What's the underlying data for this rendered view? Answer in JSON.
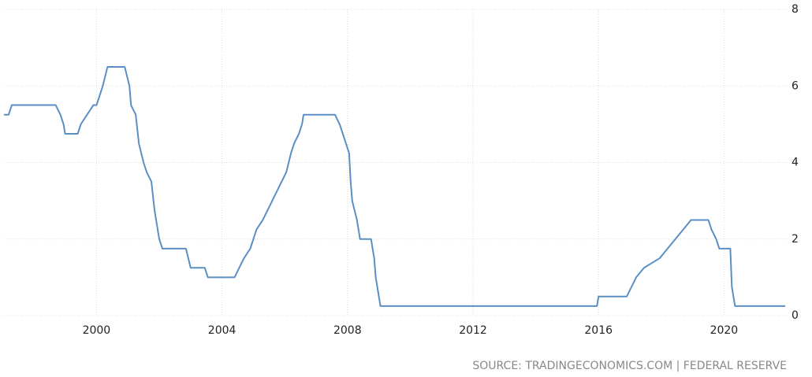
{
  "chart_data": {
    "type": "line",
    "x": [
      1997.05,
      1997.2,
      1997.3,
      1998.7,
      1998.85,
      1998.95,
      1999.0,
      1999.4,
      1999.5,
      1999.7,
      1999.9,
      2000.0,
      2000.1,
      2000.2,
      2000.35,
      2000.9,
      2001.05,
      2001.1,
      2001.25,
      2001.35,
      2001.5,
      2001.6,
      2001.75,
      2001.85,
      2002.0,
      2002.1,
      2002.85,
      2003.0,
      2003.45,
      2003.55,
      2004.4,
      2004.55,
      2004.7,
      2004.9,
      2005.1,
      2005.3,
      2005.45,
      2005.6,
      2005.75,
      2005.9,
      2006.05,
      2006.2,
      2006.3,
      2006.45,
      2006.55,
      2006.6,
      2007.6,
      2007.75,
      2007.85,
      2007.95,
      2008.05,
      2008.1,
      2008.15,
      2008.3,
      2008.4,
      2008.75,
      2008.85,
      2008.9,
      2009.0,
      2009.05,
      2015.95,
      2016.0,
      2016.9,
      2017.05,
      2017.2,
      2017.45,
      2017.95,
      2018.2,
      2018.45,
      2018.7,
      2018.95,
      2019.5,
      2019.6,
      2019.75,
      2019.85,
      2020.2,
      2020.25,
      2020.35,
      2021.95
    ],
    "values": [
      5.25,
      5.25,
      5.5,
      5.5,
      5.25,
      5.0,
      4.75,
      4.75,
      5.0,
      5.25,
      5.5,
      5.5,
      5.75,
      6.0,
      6.5,
      6.5,
      6.0,
      5.5,
      5.25,
      4.5,
      4.0,
      3.75,
      3.5,
      2.75,
      2.0,
      1.75,
      1.75,
      1.25,
      1.25,
      1.0,
      1.0,
      1.25,
      1.5,
      1.75,
      2.25,
      2.5,
      2.75,
      3.0,
      3.25,
      3.5,
      3.75,
      4.25,
      4.5,
      4.75,
      5.0,
      5.25,
      5.25,
      5.0,
      4.75,
      4.5,
      4.25,
      3.5,
      3.0,
      2.5,
      2.0,
      2.0,
      1.5,
      1.0,
      0.5,
      0.25,
      0.25,
      0.5,
      0.5,
      0.75,
      1.0,
      1.25,
      1.5,
      1.75,
      2.0,
      2.25,
      2.5,
      2.5,
      2.25,
      2.0,
      1.75,
      1.75,
      0.75,
      0.25,
      0.25
    ],
    "color": "#5b8fc4",
    "xlim": [
      1997.05,
      2022.05
    ],
    "xticks": [
      2000,
      2004,
      2008,
      2012,
      2016,
      2020
    ],
    "ylim": [
      0,
      8
    ],
    "yticks": [
      0,
      2,
      4,
      6,
      8
    ],
    "grid": true,
    "source": "SOURCE: TRADINGECONOMICS.COM | FEDERAL RESERVE"
  }
}
